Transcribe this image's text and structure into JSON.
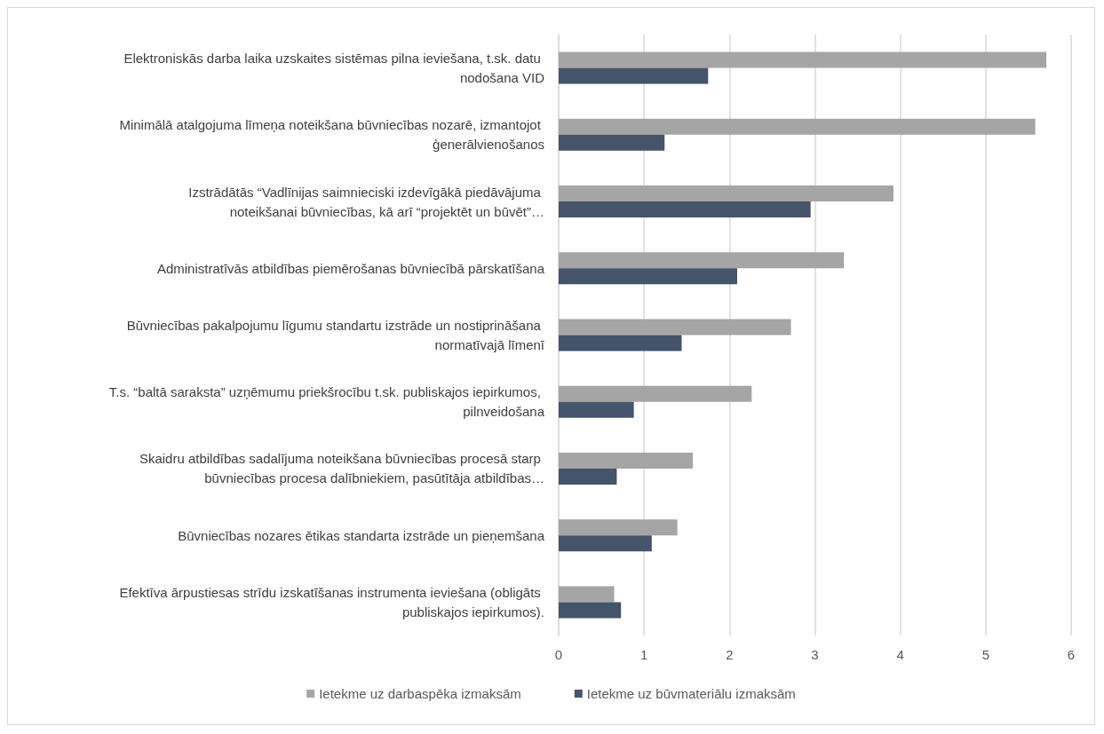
{
  "chart_data": {
    "type": "bar",
    "orientation": "horizontal",
    "categories": [
      "Elektroniskās darba laika uzskaites sistēmas pilna ieviešana, t.sk. datu nodošana VID",
      "Minimālā atalgojuma līmeņa noteikšana būvniecības nozarē, izmantojot ģenerālvienošanos",
      "Izstrādātās “Vadlīnijas saimnieciski izdevīgākā piedāvājuma noteikšanai būvniecības, kā arī “projektēt un būvēt”…",
      "Administratīvās atbildības piemērošanas būvniecībā pārskatīšana",
      "Būvniecības pakalpojumu līgumu standartu izstrāde un nostiprināšana normatīvajā līmenī",
      "T.s. “baltā saraksta” uzņēmumu priekšrocību t.sk. publiskajos iepirkumos, pilnveidošana",
      "Skaidru atbildības sadalījuma noteikšana būvniecības procesā starp būvniecības procesa dalībniekiem, pasūtītāja atbildības…",
      "Būvniecības nozares ētikas standarta izstrāde un pieņemšana",
      "Efektīva ārpustiesas strīdu izskatīšanas instrumenta ieviešana (obligāts publiskajos iepirkumos)."
    ],
    "series": [
      {
        "name": "Ietekme uz darbaspēka izmaksām",
        "color": "#a5a5a5",
        "values": [
          5.71,
          5.58,
          3.92,
          3.34,
          2.72,
          2.26,
          1.57,
          1.39,
          0.65
        ]
      },
      {
        "name": "Ietekme uz būvmateriālu izmaksām",
        "color": "#44546a",
        "values": [
          1.75,
          1.24,
          2.95,
          2.09,
          1.44,
          0.88,
          0.68,
          1.09,
          0.73
        ]
      }
    ],
    "xlim": [
      0,
      6
    ],
    "xticks": [
      0,
      1,
      2,
      3,
      4,
      5,
      6
    ],
    "grid": "x",
    "legend": "bottom"
  }
}
